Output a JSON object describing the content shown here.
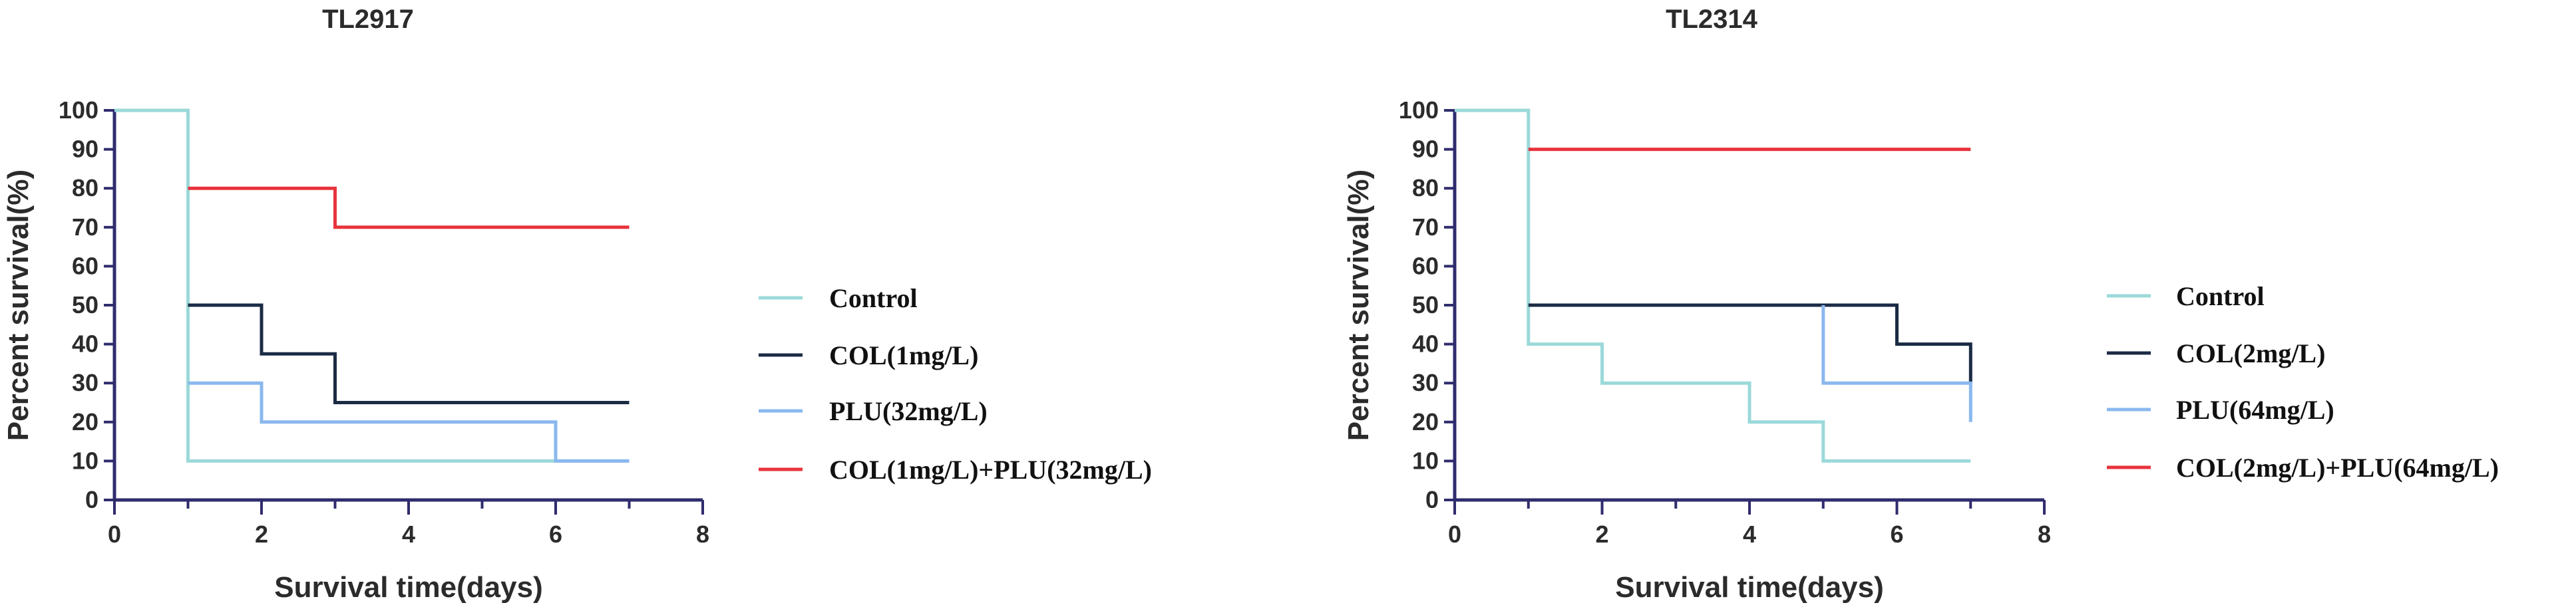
{
  "chart_data": [
    {
      "type": "line",
      "step": true,
      "title": "TL2917",
      "xlabel": "Survival time(days)",
      "ylabel": "Percent survival(%)",
      "xlim": [
        0,
        8
      ],
      "ylim": [
        0,
        100
      ],
      "xticks": [
        0,
        2,
        4,
        6,
        8
      ],
      "yticks": [
        0,
        10,
        20,
        30,
        40,
        50,
        60,
        70,
        80,
        90,
        100
      ],
      "grid": false,
      "legend_position": "right",
      "series": [
        {
          "name": "Control",
          "color": "#9bd9d9",
          "points": [
            [
              0,
              100
            ],
            [
              1,
              100
            ],
            [
              1,
              10
            ],
            [
              7,
              10
            ]
          ]
        },
        {
          "name": "COL(1mg/L)",
          "color": "#1b2b45",
          "points": [
            [
              1,
              50
            ],
            [
              2,
              50
            ],
            [
              2,
              37.5
            ],
            [
              3,
              37.5
            ],
            [
              3,
              25
            ],
            [
              7,
              25
            ]
          ]
        },
        {
          "name": "PLU(32mg/L)",
          "color": "#8ab8ee",
          "points": [
            [
              1,
              30
            ],
            [
              2,
              30
            ],
            [
              2,
              20
            ],
            [
              6,
              20
            ],
            [
              6,
              10
            ],
            [
              7,
              10
            ]
          ]
        },
        {
          "name": "COL(1mg/L)+PLU(32mg/L)",
          "color": "#e8333c",
          "points": [
            [
              1,
              80
            ],
            [
              3,
              80
            ],
            [
              3,
              70
            ],
            [
              7,
              70
            ]
          ]
        }
      ]
    },
    {
      "type": "line",
      "step": true,
      "title": "TL2314",
      "xlabel": "Survival time(days)",
      "ylabel": "Percent survival(%)",
      "xlim": [
        0,
        8
      ],
      "ylim": [
        0,
        100
      ],
      "xticks": [
        0,
        2,
        4,
        6,
        8
      ],
      "yticks": [
        0,
        10,
        20,
        30,
        40,
        50,
        60,
        70,
        80,
        90,
        100
      ],
      "grid": false,
      "legend_position": "right",
      "series": [
        {
          "name": "Control",
          "color": "#9bd9d9",
          "points": [
            [
              0,
              100
            ],
            [
              1,
              100
            ],
            [
              1,
              40
            ],
            [
              2,
              40
            ],
            [
              2,
              30
            ],
            [
              4,
              30
            ],
            [
              4,
              20
            ],
            [
              5,
              20
            ],
            [
              5,
              10
            ],
            [
              7,
              10
            ]
          ]
        },
        {
          "name": "COL(2mg/L)",
          "color": "#1b2b45",
          "points": [
            [
              1,
              50
            ],
            [
              6,
              50
            ],
            [
              6,
              40
            ],
            [
              7,
              40
            ],
            [
              7,
              30
            ]
          ]
        },
        {
          "name": "PLU(64mg/L)",
          "color": "#8ab8ee",
          "points": [
            [
              5,
              50
            ],
            [
              5,
              30
            ],
            [
              7,
              30
            ],
            [
              7,
              20
            ]
          ]
        },
        {
          "name": "COL(2mg/L)+PLU(64mg/L)",
          "color": "#e8333c",
          "points": [
            [
              1,
              90
            ],
            [
              7,
              90
            ]
          ]
        }
      ]
    }
  ]
}
